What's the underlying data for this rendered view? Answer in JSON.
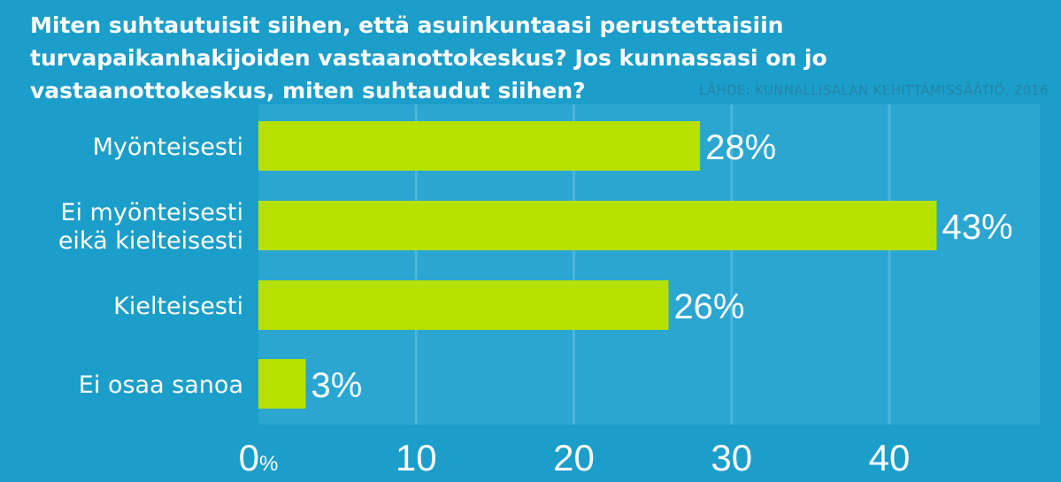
{
  "title": "Miten suhtautuisit siihen, että asuinkuntaasi perustettaisiin turvapaikanhakijoiden vastaanottokeskus? Jos kunnassasi on jo vastaanottokeskus, miten suhtaudut siihen?",
  "source": "LÄHDE: KUNNALLISALAN KEHITTÄMISSÄÄTIÖ, 2016",
  "colors": {
    "background": "#1b9ec9",
    "plot_area": "#2aa6d1",
    "bar": "#b5e100",
    "gridline": "#4cb6db",
    "text": "#ffffff"
  },
  "chart_data": {
    "type": "bar",
    "orientation": "horizontal",
    "categories": [
      [
        "Myönteisesti"
      ],
      [
        "Ei myönteisesti",
        "eikä kielteisesti"
      ],
      [
        "Kielteisesti"
      ],
      [
        "Ei osaa sanoa"
      ]
    ],
    "values": [
      28,
      43,
      26,
      3
    ],
    "value_labels": [
      "28%",
      "43%",
      "26%",
      "3%"
    ],
    "xlim": [
      0,
      50
    ],
    "ticks": [
      {
        "value": 0,
        "label": "0",
        "unit": "%"
      },
      {
        "value": 10,
        "label": "10"
      },
      {
        "value": 20,
        "label": "20"
      },
      {
        "value": 30,
        "label": "30"
      },
      {
        "value": 40,
        "label": "40"
      }
    ],
    "grid": true
  }
}
